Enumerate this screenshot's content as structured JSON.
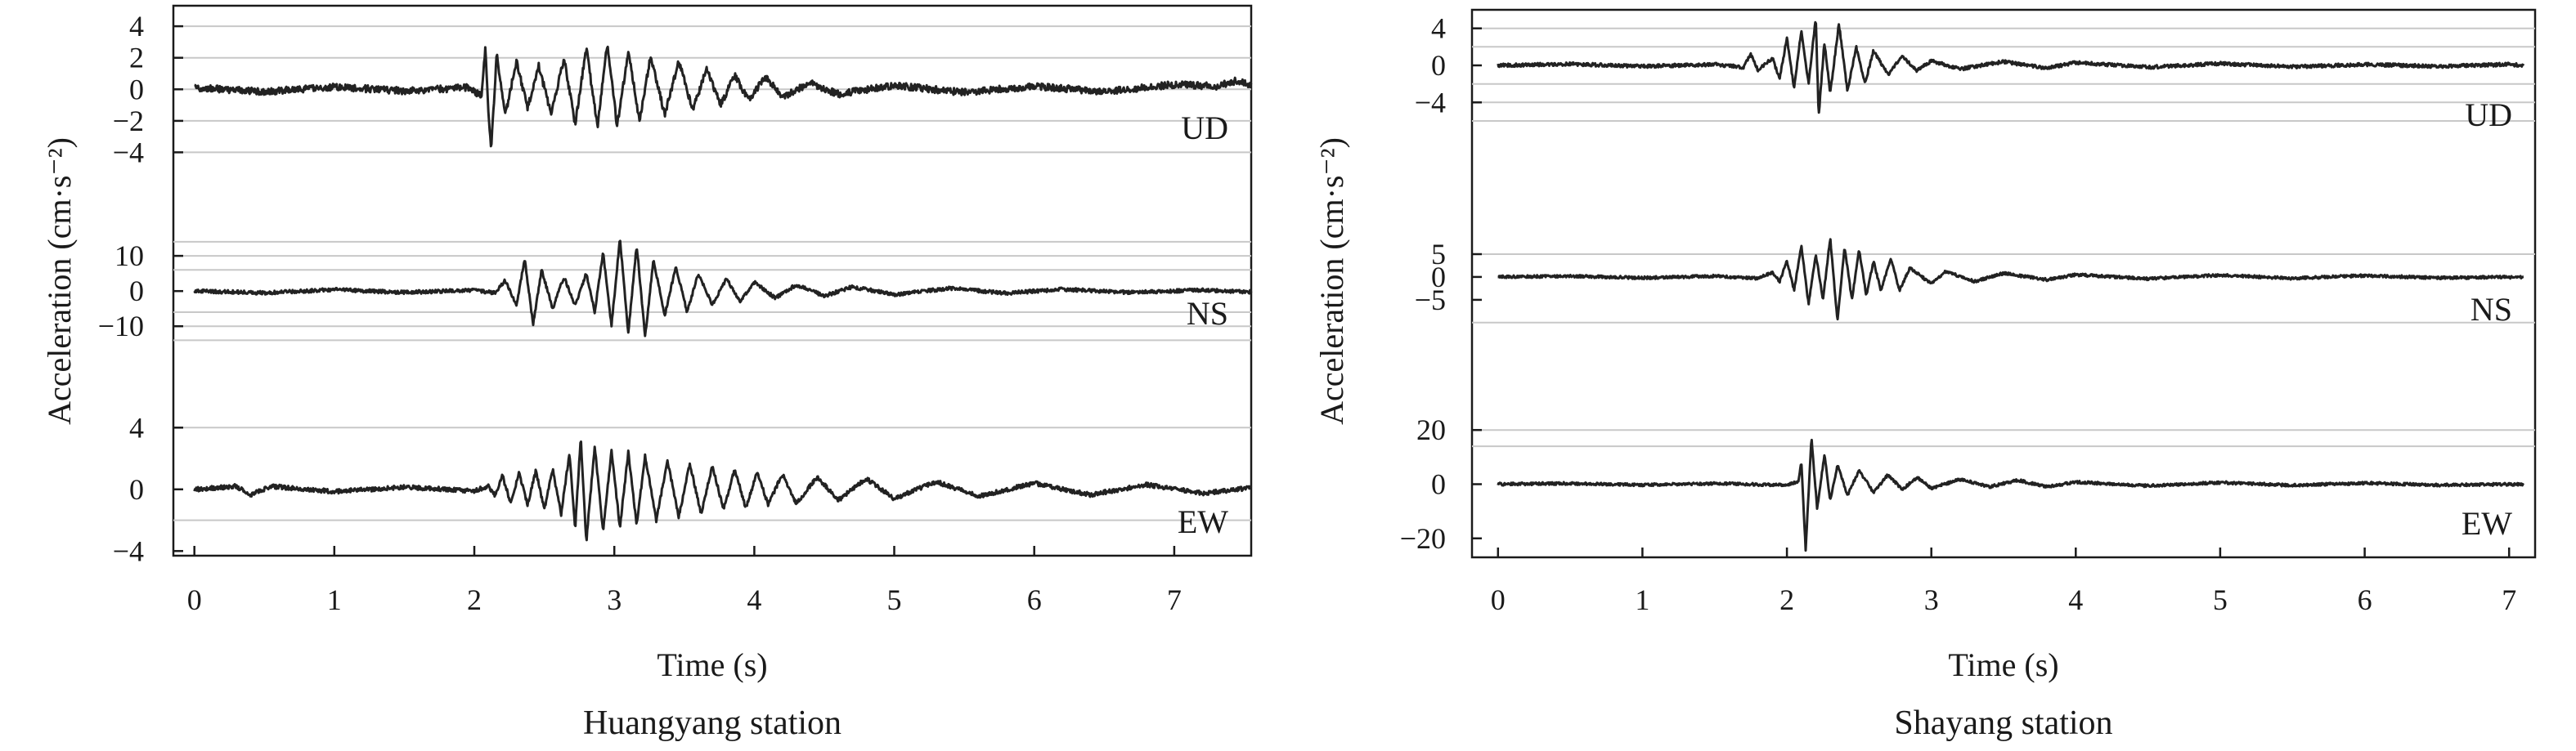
{
  "chart_data": [
    {
      "type": "line",
      "title": "Huangyang station",
      "xlabel": "Time (s)",
      "ylabel": "Acceleration (cm·s⁻²)",
      "xlim": [
        -0.15,
        7.55
      ],
      "xticks": [
        0,
        1,
        2,
        3,
        4,
        5,
        6,
        7
      ],
      "xtick_labels": [
        "0",
        "1",
        "2",
        "3",
        "4",
        "5",
        "6",
        "7"
      ],
      "grid": true,
      "panels": [
        {
          "name": "UD",
          "ylim": [
            -4.6,
            5.2
          ],
          "yticks": [
            4,
            2,
            0,
            -2,
            -4
          ],
          "ytick_labels": [
            "4",
            "2",
            "0",
            "−2",
            "−4"
          ],
          "gridlines": [
            4,
            2,
            0,
            -2,
            -4
          ],
          "noise": 0.22,
          "trace": [
            [
              0,
              0.1
            ],
            [
              0.5,
              -0.15
            ],
            [
              1.0,
              0.15
            ],
            [
              1.5,
              -0.1
            ],
            [
              1.95,
              0.1
            ],
            [
              2.05,
              -0.4
            ],
            [
              2.08,
              2.6
            ],
            [
              2.1,
              -1.2
            ],
            [
              2.12,
              -3.9
            ],
            [
              2.16,
              2.3
            ],
            [
              2.22,
              -1.7
            ],
            [
              2.3,
              1.8
            ],
            [
              2.38,
              -1.2
            ],
            [
              2.46,
              1.5
            ],
            [
              2.55,
              -1.6
            ],
            [
              2.64,
              2.0
            ],
            [
              2.72,
              -2.2
            ],
            [
              2.8,
              2.6
            ],
            [
              2.88,
              -2.4
            ],
            [
              2.95,
              2.9
            ],
            [
              3.02,
              -2.3
            ],
            [
              3.1,
              2.4
            ],
            [
              3.18,
              -2.0
            ],
            [
              3.26,
              2.1
            ],
            [
              3.36,
              -1.6
            ],
            [
              3.46,
              1.8
            ],
            [
              3.56,
              -1.3
            ],
            [
              3.66,
              1.3
            ],
            [
              3.76,
              -1.0
            ],
            [
              3.86,
              0.9
            ],
            [
              3.96,
              -0.7
            ],
            [
              4.08,
              0.8
            ],
            [
              4.2,
              -0.5
            ],
            [
              4.4,
              0.4
            ],
            [
              4.6,
              -0.3
            ],
            [
              5.0,
              0.25
            ],
            [
              5.5,
              -0.2
            ],
            [
              6.0,
              0.2
            ],
            [
              6.5,
              -0.15
            ],
            [
              7.0,
              0.3
            ],
            [
              7.3,
              0.2
            ],
            [
              7.45,
              0.55
            ],
            [
              7.55,
              0.2
            ]
          ]
        },
        {
          "name": "NS",
          "ylim": [
            -16,
            17
          ],
          "yticks": [
            10,
            0,
            -10
          ],
          "ytick_labels": [
            "10",
            "0",
            "−10"
          ],
          "gridlines": [
            14,
            10,
            6,
            -6,
            -10,
            -14
          ],
          "noise": 0.5,
          "trace": [
            [
              0,
              0
            ],
            [
              0.5,
              -0.5
            ],
            [
              1.0,
              0.4
            ],
            [
              1.5,
              -0.4
            ],
            [
              2.0,
              0.3
            ],
            [
              2.15,
              -0.6
            ],
            [
              2.22,
              3.0
            ],
            [
              2.3,
              -4.0
            ],
            [
              2.36,
              9.0
            ],
            [
              2.42,
              -9.5
            ],
            [
              2.48,
              6.0
            ],
            [
              2.56,
              -5.0
            ],
            [
              2.64,
              4.0
            ],
            [
              2.72,
              -4.0
            ],
            [
              2.8,
              5.0
            ],
            [
              2.86,
              -6.0
            ],
            [
              2.92,
              11.0
            ],
            [
              2.98,
              -10.0
            ],
            [
              3.04,
              15.0
            ],
            [
              3.1,
              -12.0
            ],
            [
              3.16,
              13.0
            ],
            [
              3.22,
              -13.0
            ],
            [
              3.28,
              9.0
            ],
            [
              3.36,
              -7.0
            ],
            [
              3.44,
              7.0
            ],
            [
              3.52,
              -6.0
            ],
            [
              3.6,
              5.0
            ],
            [
              3.7,
              -4.0
            ],
            [
              3.8,
              3.5
            ],
            [
              3.9,
              -3.0
            ],
            [
              4.0,
              2.5
            ],
            [
              4.15,
              -2.0
            ],
            [
              4.3,
              1.8
            ],
            [
              4.5,
              -1.4
            ],
            [
              4.7,
              1.2
            ],
            [
              5.0,
              -1.0
            ],
            [
              5.4,
              0.8
            ],
            [
              5.8,
              -0.6
            ],
            [
              6.2,
              0.5
            ],
            [
              6.7,
              -0.4
            ],
            [
              7.2,
              0.3
            ],
            [
              7.55,
              -0.3
            ]
          ]
        },
        {
          "name": "EW",
          "ylim": [
            -4.3,
            4.6
          ],
          "yticks": [
            4,
            0,
            -4
          ],
          "ytick_labels": [
            "4",
            "0",
            "−4"
          ],
          "gridlines": [
            4,
            -2
          ],
          "noise": 0.14,
          "trace": [
            [
              0,
              0
            ],
            [
              0.3,
              0.2
            ],
            [
              0.4,
              -0.35
            ],
            [
              0.55,
              0.2
            ],
            [
              1.0,
              -0.15
            ],
            [
              1.5,
              0.15
            ],
            [
              2.0,
              -0.1
            ],
            [
              2.1,
              0.2
            ],
            [
              2.15,
              -0.4
            ],
            [
              2.2,
              0.9
            ],
            [
              2.26,
              -0.9
            ],
            [
              2.32,
              1.1
            ],
            [
              2.38,
              -1.0
            ],
            [
              2.44,
              1.2
            ],
            [
              2.5,
              -1.3
            ],
            [
              2.56,
              1.3
            ],
            [
              2.62,
              -1.6
            ],
            [
              2.68,
              2.4
            ],
            [
              2.72,
              -2.6
            ],
            [
              2.76,
              3.4
            ],
            [
              2.8,
              -3.4
            ],
            [
              2.86,
              2.8
            ],
            [
              2.92,
              -2.8
            ],
            [
              2.98,
              2.6
            ],
            [
              3.04,
              -2.5
            ],
            [
              3.1,
              2.4
            ],
            [
              3.16,
              -2.3
            ],
            [
              3.22,
              2.2
            ],
            [
              3.3,
              -2.0
            ],
            [
              3.38,
              1.9
            ],
            [
              3.46,
              -1.8
            ],
            [
              3.54,
              1.7
            ],
            [
              3.62,
              -1.6
            ],
            [
              3.7,
              1.5
            ],
            [
              3.78,
              -1.3
            ],
            [
              3.86,
              1.3
            ],
            [
              3.94,
              -1.2
            ],
            [
              4.02,
              1.1
            ],
            [
              4.1,
              -1.0
            ],
            [
              4.2,
              1.0
            ],
            [
              4.3,
              -0.9
            ],
            [
              4.45,
              0.8
            ],
            [
              4.6,
              -0.7
            ],
            [
              4.8,
              0.7
            ],
            [
              5.0,
              -0.6
            ],
            [
              5.3,
              0.5
            ],
            [
              5.6,
              -0.45
            ],
            [
              6.0,
              0.4
            ],
            [
              6.4,
              -0.35
            ],
            [
              6.8,
              0.3
            ],
            [
              7.2,
              -0.25
            ],
            [
              7.55,
              0.1
            ]
          ]
        }
      ]
    },
    {
      "type": "line",
      "title": "Shayang station",
      "xlabel": "Time (s)",
      "ylabel": "Acceleration (cm·s⁻²)",
      "xlim": [
        -0.18,
        7.18
      ],
      "xticks": [
        0,
        1,
        2,
        3,
        4,
        5,
        6,
        7
      ],
      "xtick_labels": [
        "0",
        "1",
        "2",
        "3",
        "4",
        "5",
        "6",
        "7"
      ],
      "grid": true,
      "panels": [
        {
          "name": "UD",
          "ylim": [
            -9.0,
            6.0
          ],
          "yticks": [
            4,
            0,
            -4
          ],
          "ytick_labels": [
            "4",
            "0",
            "−4"
          ],
          "gridlines": [
            4,
            2,
            -2,
            -4,
            -6
          ],
          "noise": 0.18,
          "trace": [
            [
              0,
              0
            ],
            [
              0.5,
              0.15
            ],
            [
              1.0,
              -0.1
            ],
            [
              1.5,
              0.1
            ],
            [
              1.7,
              -0.2
            ],
            [
              1.75,
              1.2
            ],
            [
              1.8,
              -0.5
            ],
            [
              1.9,
              0.8
            ],
            [
              1.95,
              -1.5
            ],
            [
              2.0,
              3.0
            ],
            [
              2.05,
              -2.5
            ],
            [
              2.1,
              3.8
            ],
            [
              2.15,
              -2.0
            ],
            [
              2.2,
              5.2
            ],
            [
              2.22,
              -5.5
            ],
            [
              2.26,
              2.5
            ],
            [
              2.3,
              -3.0
            ],
            [
              2.36,
              4.5
            ],
            [
              2.42,
              -2.8
            ],
            [
              2.48,
              2.0
            ],
            [
              2.54,
              -2.0
            ],
            [
              2.6,
              1.6
            ],
            [
              2.7,
              -1.0
            ],
            [
              2.8,
              1.0
            ],
            [
              2.9,
              -0.6
            ],
            [
              3.0,
              0.5
            ],
            [
              3.2,
              -0.4
            ],
            [
              3.5,
              0.4
            ],
            [
              3.8,
              -0.3
            ],
            [
              4.0,
              0.3
            ],
            [
              4.5,
              -0.2
            ],
            [
              5.0,
              0.2
            ],
            [
              5.5,
              -0.15
            ],
            [
              6.0,
              0.1
            ],
            [
              6.5,
              -0.1
            ],
            [
              7.0,
              0.1
            ],
            [
              7.1,
              0
            ]
          ]
        },
        {
          "name": "NS",
          "ylim": [
            -14.5,
            10.0
          ],
          "yticks": [
            5,
            0,
            -5
          ],
          "ytick_labels": [
            "5",
            "0",
            "−5"
          ],
          "gridlines": [
            5,
            -10
          ],
          "noise": 0.3,
          "trace": [
            [
              0,
              0
            ],
            [
              0.5,
              0.2
            ],
            [
              1.0,
              -0.2
            ],
            [
              1.5,
              0.2
            ],
            [
              1.8,
              -0.3
            ],
            [
              1.9,
              1.0
            ],
            [
              1.95,
              -1.0
            ],
            [
              2.0,
              3.5
            ],
            [
              2.05,
              -3.0
            ],
            [
              2.1,
              7.0
            ],
            [
              2.15,
              -6.0
            ],
            [
              2.2,
              5.0
            ],
            [
              2.25,
              -5.0
            ],
            [
              2.3,
              8.5
            ],
            [
              2.35,
              -9.5
            ],
            [
              2.4,
              6.5
            ],
            [
              2.45,
              -5.0
            ],
            [
              2.5,
              6.0
            ],
            [
              2.55,
              -4.0
            ],
            [
              2.6,
              3.5
            ],
            [
              2.65,
              -3.0
            ],
            [
              2.72,
              4.0
            ],
            [
              2.78,
              -3.0
            ],
            [
              2.85,
              2.0
            ],
            [
              3.0,
              -1.5
            ],
            [
              3.1,
              1.2
            ],
            [
              3.3,
              -1.0
            ],
            [
              3.5,
              0.8
            ],
            [
              3.8,
              -0.6
            ],
            [
              4.0,
              0.5
            ],
            [
              4.5,
              -0.4
            ],
            [
              5.0,
              0.4
            ],
            [
              5.5,
              -0.3
            ],
            [
              6.0,
              0.3
            ],
            [
              6.5,
              -0.2
            ],
            [
              7.1,
              0
            ]
          ]
        },
        {
          "name": "EW",
          "ylim": [
            -27,
            27
          ],
          "yticks": [
            20,
            0,
            -20
          ],
          "ytick_labels": [
            "20",
            "0",
            "−20"
          ],
          "gridlines": [
            20,
            14
          ],
          "noise": 0.5,
          "trace": [
            [
              0,
              0
            ],
            [
              0.5,
              0.3
            ],
            [
              1.0,
              -0.3
            ],
            [
              1.5,
              0.3
            ],
            [
              2.0,
              -0.4
            ],
            [
              2.08,
              1.0
            ],
            [
              2.1,
              8.0
            ],
            [
              2.13,
              -24.0
            ],
            [
              2.17,
              17.0
            ],
            [
              2.21,
              -9.0
            ],
            [
              2.26,
              11.0
            ],
            [
              2.3,
              -6.0
            ],
            [
              2.35,
              7.0
            ],
            [
              2.42,
              -4.0
            ],
            [
              2.5,
              5.0
            ],
            [
              2.6,
              -3.0
            ],
            [
              2.7,
              3.5
            ],
            [
              2.8,
              -2.0
            ],
            [
              2.9,
              2.5
            ],
            [
              3.0,
              -1.5
            ],
            [
              3.2,
              1.8
            ],
            [
              3.4,
              -1.0
            ],
            [
              3.6,
              1.5
            ],
            [
              3.8,
              -1.0
            ],
            [
              4.0,
              0.8
            ],
            [
              4.5,
              -0.6
            ],
            [
              5.0,
              0.6
            ],
            [
              5.5,
              -0.4
            ],
            [
              6.0,
              0.4
            ],
            [
              6.5,
              -0.3
            ],
            [
              7.1,
              0
            ]
          ]
        }
      ]
    }
  ]
}
